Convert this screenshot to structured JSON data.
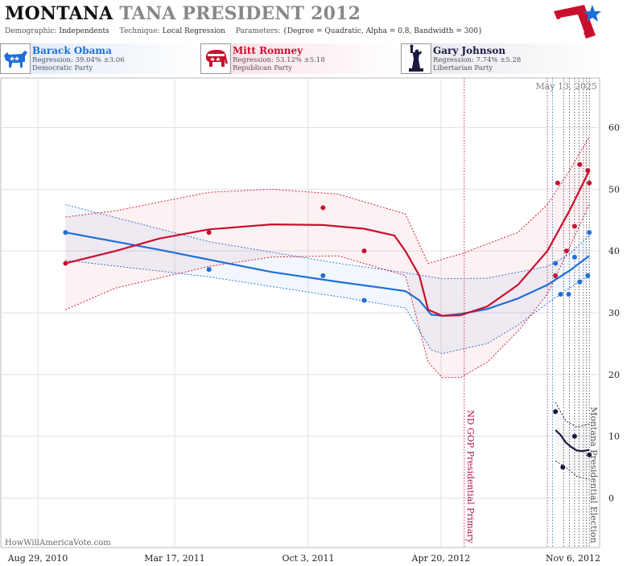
{
  "header": {
    "state": "MONTANA",
    "race": "TANA PRESIDENT 2012",
    "demographic_label": "Demographic:",
    "demographic_value": "Independents",
    "technique_label": "Technique:",
    "technique_value": "Local Regression",
    "parameters_label": "Parameters:",
    "parameters_value": "{Degree = Quadratic, Alpha = 0.8, Bandwidth = 300}"
  },
  "candidates": [
    {
      "name": "Barack Obama",
      "regression": "Regression: 39.04% ±3.06",
      "party": "Democratic Party",
      "color": "#1f6fd6",
      "icon": "donkey-icon"
    },
    {
      "name": "Mitt Romney",
      "regression": "Regression: 53.12% ±5.18",
      "party": "Republican Party",
      "color": "#c8102e",
      "icon": "elephant-icon"
    },
    {
      "name": "Gary Johnson",
      "regression": "Regression: 7.74% ±5.28",
      "party": "Libertarian Party",
      "color": "#1a1a40",
      "icon": "statue-of-liberty-icon"
    }
  ],
  "date_label": "May 13, 2025",
  "watermark": "HowWillAmericaVote.com",
  "chart_data": {
    "type": "scatter",
    "x_ticks": [
      "Aug 29, 2010",
      "Mar 17, 2011",
      "Oct 3, 2011",
      "Apr 20, 2012",
      "Nov 6, 2012"
    ],
    "x_range": [
      "2010-08-29",
      "2012-11-20"
    ],
    "y_ticks": [
      0,
      10,
      20,
      30,
      40,
      50,
      60
    ],
    "ylim": [
      -8,
      68
    ],
    "grid": true,
    "annotations": [
      {
        "date": "2012-05-20",
        "label": "ND GOP Presidential Primary",
        "color": "#b0174a"
      },
      {
        "date": "2012-11-06",
        "label": "Montana Presidential Election",
        "color": "#555555"
      }
    ],
    "poll_lines": [
      {
        "date": "2012-09-10",
        "color": "#b0174a"
      },
      {
        "date": "2012-09-17",
        "color": "#1f6fd6"
      },
      {
        "date": "2012-10-02",
        "color": "#444444"
      },
      {
        "date": "2012-10-10",
        "color": "#444444"
      },
      {
        "date": "2012-10-17",
        "color": "#444444"
      },
      {
        "date": "2012-10-23",
        "color": "#444444"
      },
      {
        "date": "2012-10-29",
        "color": "#444444"
      },
      {
        "date": "2012-11-02",
        "color": "#444444"
      }
    ],
    "series": [
      {
        "name": "Barack Obama",
        "color": "#1f6fd6",
        "points": [
          [
            "2010-11-25",
            43
          ],
          [
            "2011-06-08",
            37
          ],
          [
            "2011-11-10",
            36
          ],
          [
            "2012-01-05",
            32
          ],
          [
            "2012-09-21",
            38
          ],
          [
            "2012-09-28",
            33
          ],
          [
            "2012-10-09",
            33
          ],
          [
            "2012-10-17",
            39
          ],
          [
            "2012-10-24",
            35
          ],
          [
            "2012-11-04",
            36
          ],
          [
            "2012-11-06",
            43
          ]
        ],
        "fit": [
          [
            "2010-11-25",
            43
          ],
          [
            "2011-02-01",
            41.5
          ],
          [
            "2011-04-01",
            40.2
          ],
          [
            "2011-06-08",
            38.6
          ],
          [
            "2011-09-01",
            36.6
          ],
          [
            "2011-12-01",
            35
          ],
          [
            "2012-02-01",
            34
          ],
          [
            "2012-03-01",
            33.5
          ],
          [
            "2012-03-20",
            32
          ],
          [
            "2012-04-05",
            29.7
          ],
          [
            "2012-04-20",
            29.5
          ],
          [
            "2012-05-15",
            29.8
          ],
          [
            "2012-06-20",
            30.6
          ],
          [
            "2012-08-01",
            32.3
          ],
          [
            "2012-09-10",
            34.5
          ],
          [
            "2012-10-10",
            36.8
          ],
          [
            "2012-11-06",
            39.2
          ]
        ],
        "upper": [
          [
            "2010-11-25",
            47.5
          ],
          [
            "2011-06-08",
            41.5
          ],
          [
            "2011-12-01",
            38
          ],
          [
            "2012-03-01",
            36.5
          ],
          [
            "2012-04-20",
            35.5
          ],
          [
            "2012-06-20",
            35.6
          ],
          [
            "2012-09-10",
            37.5
          ],
          [
            "2012-10-10",
            39.5
          ],
          [
            "2012-11-06",
            42.5
          ]
        ],
        "lower": [
          [
            "2010-11-25",
            38.5
          ],
          [
            "2011-06-08",
            35.8
          ],
          [
            "2011-12-01",
            32.6
          ],
          [
            "2012-03-01",
            30.8
          ],
          [
            "2012-04-05",
            24
          ],
          [
            "2012-04-20",
            23.4
          ],
          [
            "2012-06-20",
            25
          ],
          [
            "2012-08-01",
            28
          ],
          [
            "2012-09-10",
            31.5
          ],
          [
            "2012-10-10",
            34
          ],
          [
            "2012-11-06",
            36
          ]
        ]
      },
      {
        "name": "Mitt Romney",
        "color": "#c8102e",
        "points": [
          [
            "2010-11-25",
            38
          ],
          [
            "2011-06-08",
            43
          ],
          [
            "2011-11-10",
            47
          ],
          [
            "2012-01-05",
            40
          ],
          [
            "2012-09-21",
            36
          ],
          [
            "2012-09-24",
            51
          ],
          [
            "2012-10-06",
            40
          ],
          [
            "2012-10-17",
            44
          ],
          [
            "2012-10-24",
            54
          ],
          [
            "2012-11-04",
            53
          ],
          [
            "2012-11-06",
            51
          ]
        ],
        "fit": [
          [
            "2010-11-25",
            38
          ],
          [
            "2011-02-01",
            40
          ],
          [
            "2011-04-01",
            42
          ],
          [
            "2011-06-08",
            43.5
          ],
          [
            "2011-09-01",
            44.3
          ],
          [
            "2011-11-10",
            44.2
          ],
          [
            "2012-01-05",
            43.6
          ],
          [
            "2012-02-15",
            42.5
          ],
          [
            "2012-03-01",
            40
          ],
          [
            "2012-03-20",
            36
          ],
          [
            "2012-04-01",
            30.5
          ],
          [
            "2012-04-20",
            29.5
          ],
          [
            "2012-05-15",
            29.6
          ],
          [
            "2012-06-20",
            31
          ],
          [
            "2012-08-01",
            34.5
          ],
          [
            "2012-09-10",
            40
          ],
          [
            "2012-10-10",
            46.5
          ],
          [
            "2012-11-06",
            53
          ]
        ],
        "upper": [
          [
            "2010-11-25",
            45.5
          ],
          [
            "2011-02-01",
            46.5
          ],
          [
            "2011-06-08",
            49.5
          ],
          [
            "2011-09-01",
            50
          ],
          [
            "2011-12-01",
            49.2
          ],
          [
            "2012-03-01",
            46
          ],
          [
            "2012-04-01",
            38
          ],
          [
            "2012-05-15",
            39.5
          ],
          [
            "2012-08-01",
            43
          ],
          [
            "2012-09-10",
            47.5
          ],
          [
            "2012-10-10",
            53
          ],
          [
            "2012-11-06",
            58.5
          ]
        ],
        "lower": [
          [
            "2010-11-25",
            30.5
          ],
          [
            "2011-02-01",
            34
          ],
          [
            "2011-06-08",
            37.5
          ],
          [
            "2011-09-01",
            39
          ],
          [
            "2011-12-01",
            39.2
          ],
          [
            "2012-03-01",
            36
          ],
          [
            "2012-04-01",
            22
          ],
          [
            "2012-04-20",
            19.5
          ],
          [
            "2012-05-15",
            19.5
          ],
          [
            "2012-06-20",
            22
          ],
          [
            "2012-08-01",
            27
          ],
          [
            "2012-09-10",
            33
          ],
          [
            "2012-10-10",
            40.5
          ],
          [
            "2012-11-06",
            47.5
          ]
        ]
      },
      {
        "name": "Gary Johnson",
        "color": "#1a1a40",
        "points": [
          [
            "2012-09-21",
            14
          ],
          [
            "2012-10-01",
            5
          ],
          [
            "2012-10-17",
            10
          ],
          [
            "2012-11-06",
            7
          ]
        ],
        "fit": [
          [
            "2012-09-21",
            11
          ],
          [
            "2012-09-28",
            10.2
          ],
          [
            "2012-10-05",
            9
          ],
          [
            "2012-10-12",
            8.3
          ],
          [
            "2012-10-20",
            7.7
          ],
          [
            "2012-10-28",
            7.6
          ],
          [
            "2012-11-06",
            7.8
          ]
        ],
        "upper": [
          [
            "2012-09-21",
            15.5
          ],
          [
            "2012-10-05",
            12.5
          ],
          [
            "2012-10-20",
            11.5
          ],
          [
            "2012-11-06",
            12
          ]
        ],
        "lower": [
          [
            "2012-09-21",
            6
          ],
          [
            "2012-10-05",
            5
          ],
          [
            "2012-10-20",
            3.5
          ],
          [
            "2012-11-06",
            3
          ]
        ]
      }
    ]
  }
}
